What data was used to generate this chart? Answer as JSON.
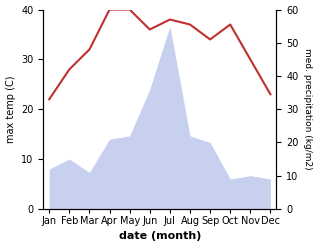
{
  "months": [
    "Jan",
    "Feb",
    "Mar",
    "Apr",
    "May",
    "Jun",
    "Jul",
    "Aug",
    "Sep",
    "Oct",
    "Nov",
    "Dec"
  ],
  "temperature": [
    22,
    28,
    32,
    40,
    40,
    36,
    38,
    37,
    34,
    37,
    30,
    23
  ],
  "precipitation": [
    12,
    15,
    11,
    21,
    22,
    36,
    55,
    22,
    20,
    9,
    10,
    9
  ],
  "temp_color": "#c03030",
  "precip_color_fill": "#c8d0f0",
  "ylabel_left": "max temp (C)",
  "ylabel_right": "med. precipitation (kg/m2)",
  "xlabel": "date (month)",
  "ylim_left": [
    0,
    40
  ],
  "ylim_right": [
    0,
    60
  ],
  "yticks_left": [
    0,
    10,
    20,
    30,
    40
  ],
  "yticks_right": [
    0,
    10,
    20,
    30,
    40,
    50,
    60
  ],
  "background_color": "#ffffff"
}
